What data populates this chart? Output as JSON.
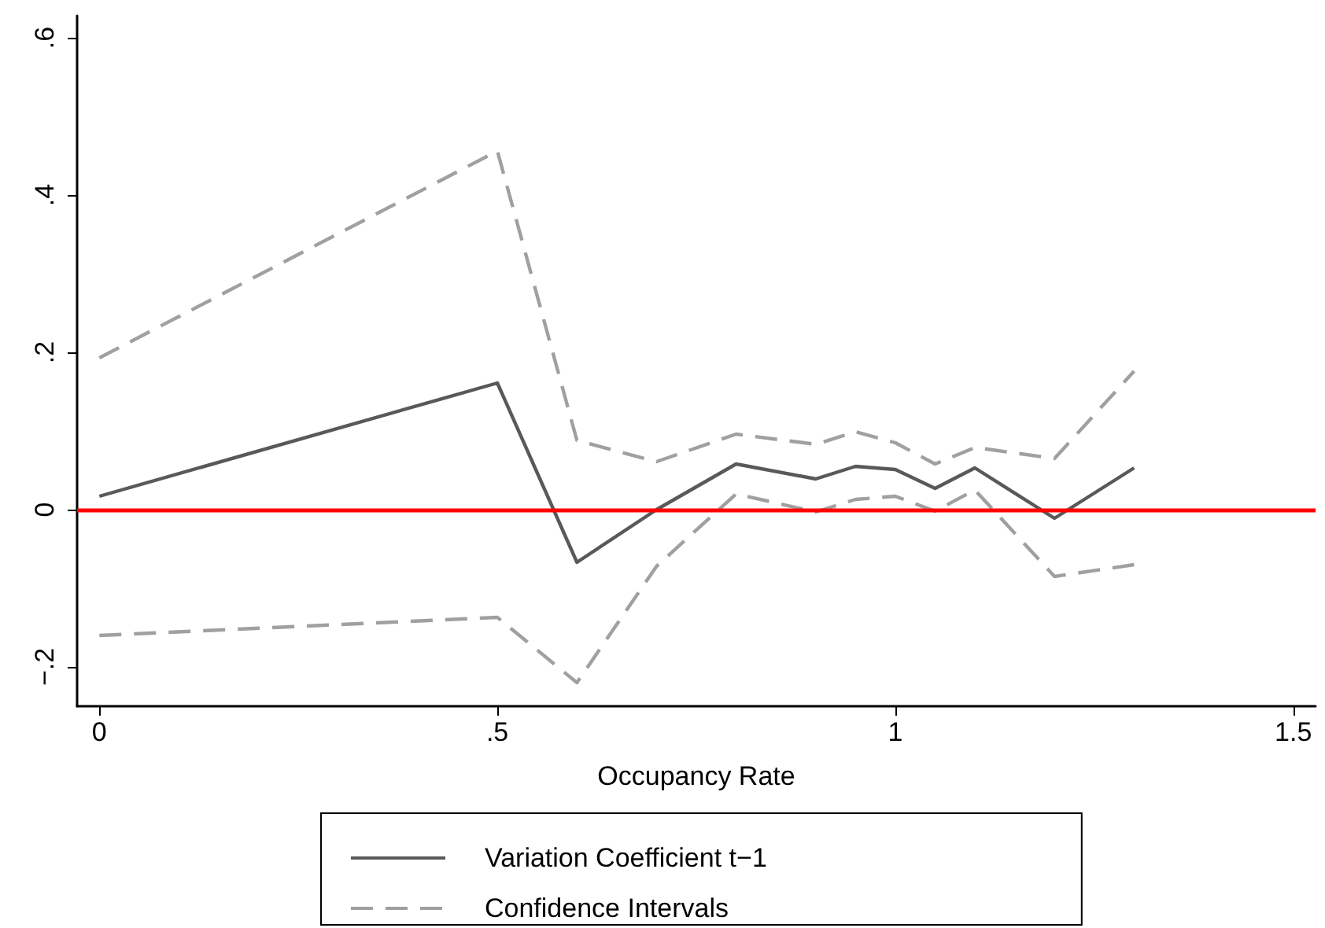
{
  "chart_data": {
    "type": "line",
    "xlabel": "Occupancy Rate",
    "x": [
      0,
      0.5,
      0.6,
      0.7,
      0.8,
      0.9,
      0.95,
      1,
      1.05,
      1.1,
      1.2,
      1.3
    ],
    "series": [
      {
        "name": "Variation Coefficient t−1",
        "color": "#595959",
        "line_style": "solid",
        "values": [
          0.017,
          0.161,
          -0.067,
          0,
          0.058,
          0.039,
          0.055,
          0.051,
          0.027,
          0.053,
          -0.011,
          0.053
        ]
      },
      {
        "name": "Confidence Intervals",
        "color": "#a0a0a0",
        "line_style": "dashed",
        "values": [
          0.193,
          0.456,
          0.088,
          0.061,
          0.096,
          0.083,
          0.099,
          0.085,
          0.058,
          0.079,
          0.065,
          0.176
        ]
      },
      {
        "color": "#a0a0a0",
        "line_style": "dashed",
        "values": [
          -0.16,
          -0.137,
          -0.22,
          -0.072,
          0.02,
          -0.003,
          0.013,
          0.017,
          -0.002,
          0.025,
          -0.085,
          -0.07
        ]
      }
    ],
    "xlim": [
      -0.028,
      1.528
    ],
    "xticks": [
      0,
      {
        "value": 0.5,
        "label": ".5"
      },
      1,
      1.5
    ],
    "ylim": [
      -0.25,
      0.628
    ],
    "yticks": [
      {
        "value": -0.2,
        "label": "−.2"
      },
      0,
      {
        "value": 0.2,
        "label": ".2"
      },
      {
        "value": 0.4,
        "label": ".4"
      },
      {
        "value": 0.6,
        "label": ".6"
      }
    ],
    "ref_lines": [
      {
        "axis": "y",
        "value": 0,
        "color": "#ff0000"
      }
    ],
    "grid": false,
    "legend": "bottom",
    "marker": "none"
  }
}
